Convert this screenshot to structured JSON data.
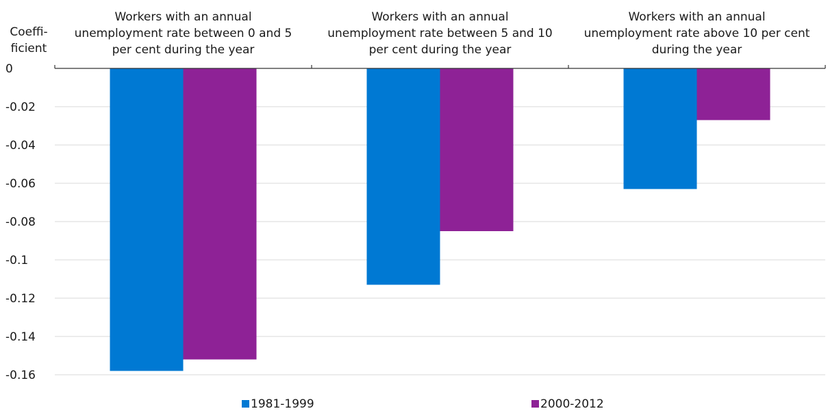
{
  "chart_data": {
    "type": "bar",
    "title": "",
    "xlabel": "",
    "ylabel": "Coefficient",
    "ylabel_lines": [
      "Coeffi-",
      "ficient"
    ],
    "ylim": [
      -0.16,
      0
    ],
    "yticks": [
      0,
      -0.02,
      -0.04,
      -0.06,
      -0.08,
      -0.1,
      -0.12,
      -0.14,
      -0.16
    ],
    "ytick_labels": [
      "0",
      "-0.02",
      "-0.04",
      "-0.06",
      "-0.08",
      "-0.1",
      "-0.12",
      "-0.14",
      "-0.16"
    ],
    "grid": true,
    "legend_position": "bottom",
    "categories": [
      "Workers with an annual unemployment rate between 0 and 5 per cent during the year",
      "Workers with an annual unemployment rate between 5 and 10 per cent during the year",
      "Workers with an annual unemployment rate above 10 per cent during the year"
    ],
    "category_label_lines": [
      [
        "Workers with an annual",
        "unemployment rate between 0 and 5",
        "per cent during the year"
      ],
      [
        "Workers with an annual",
        "unemployment rate between 5 and 10",
        "per cent during the year"
      ],
      [
        "Workers with an annual",
        "unemployment rate above 10 per cent",
        "during the year"
      ]
    ],
    "series": [
      {
        "name": "1981-1999",
        "color": "#0079d3",
        "values": [
          -0.158,
          -0.113,
          -0.063
        ]
      },
      {
        "name": "2000-2012",
        "color": "#8e2296",
        "values": [
          -0.152,
          -0.085,
          -0.027
        ]
      }
    ]
  },
  "colors": {
    "grid": "#d9d9d9",
    "axis": "#333333",
    "text": "#1a1a1a"
  }
}
